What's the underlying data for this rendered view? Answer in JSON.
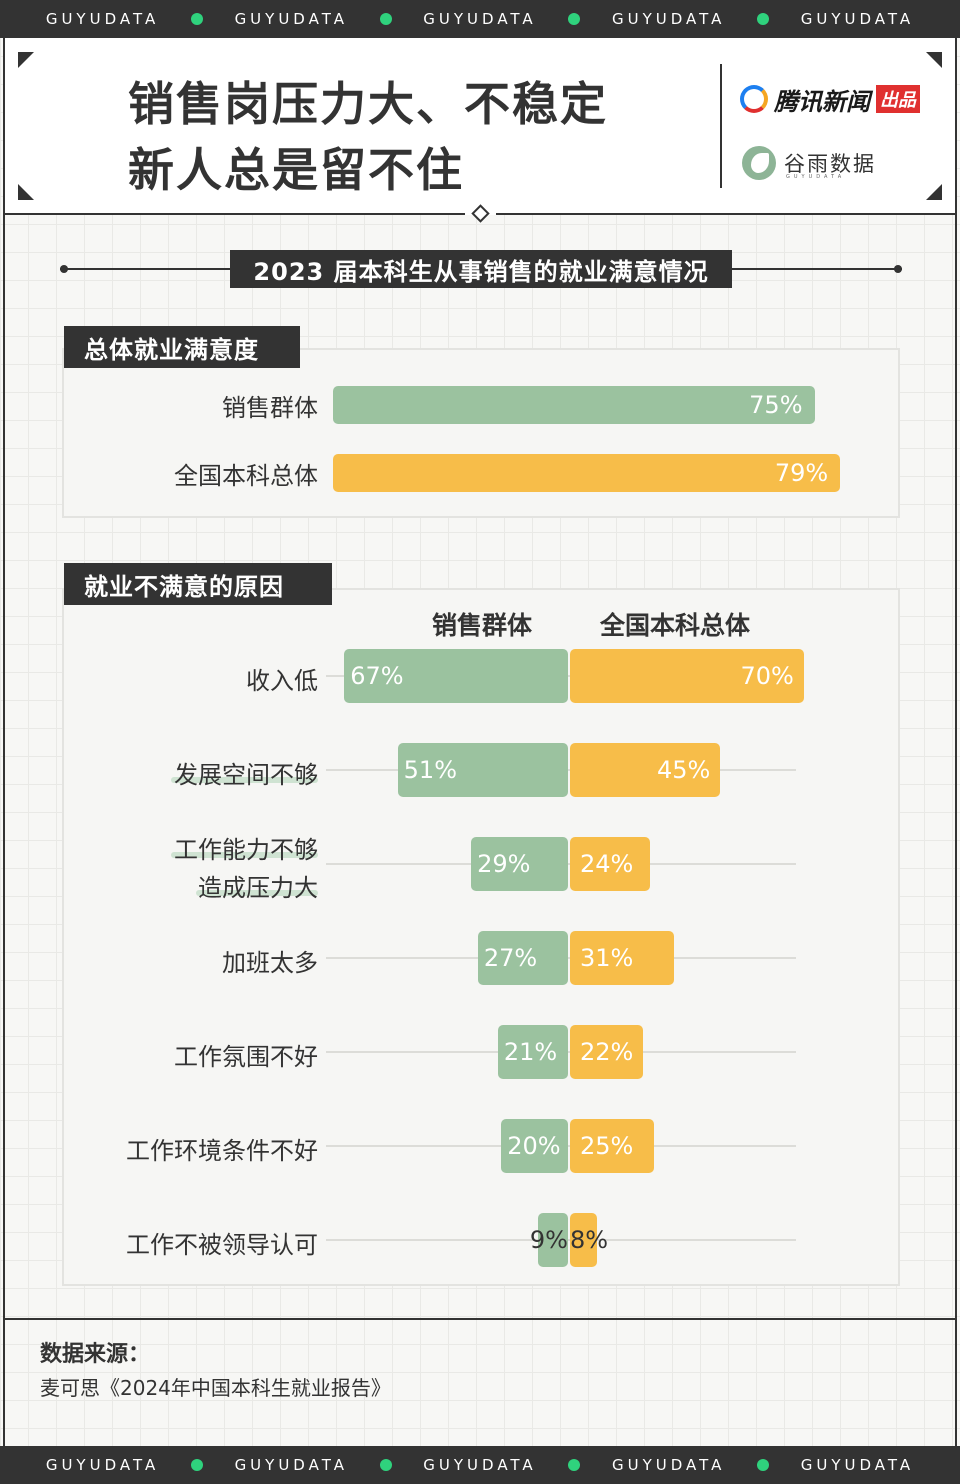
{
  "brand_strip": [
    "GUYUDATA",
    "GUYUDATA",
    "GUYUDATA",
    "GUYUDATA",
    "GUYUDATA"
  ],
  "header": {
    "title_line1": "销售岗压力大、不稳定",
    "title_line2": "新人总是留不住",
    "logo_tencent": {
      "name": "腾讯新闻",
      "tag": "出品"
    },
    "logo_guyu": {
      "name": "谷雨数据",
      "sub": "GUYUDATA"
    }
  },
  "main_title": "2023 届本科生从事销售的就业满意情况",
  "colors": {
    "sales": "#9bc29f",
    "national": "#f7bd49",
    "dark": "#333333",
    "accent_dot": "#2fd27d"
  },
  "chart_data": [
    {
      "type": "bar",
      "title": "总体就业满意度",
      "categories": [
        "销售群体",
        "全国本科总体"
      ],
      "values": [
        75,
        79
      ],
      "value_labels": [
        "75%",
        "79%"
      ],
      "unit": "%"
    },
    {
      "type": "bar",
      "title": "就业不满意的原因",
      "categories": [
        "收入低",
        "发展空间不够",
        "工作能力不够造成压力大",
        "加班太多",
        "工作氛围不好",
        "工作环境条件不好",
        "工作不被领导认可"
      ],
      "category_lines": [
        [
          "收入低"
        ],
        [
          "发展空间不够"
        ],
        [
          "工作能力不够",
          "造成压力大"
        ],
        [
          "加班太多"
        ],
        [
          "工作氛围不好"
        ],
        [
          "工作环境条件不好"
        ],
        [
          "工作不被领导认可"
        ]
      ],
      "series": [
        {
          "name": "销售群体",
          "values": [
            67,
            51,
            29,
            27,
            21,
            20,
            9
          ],
          "labels": [
            "67%",
            "51%",
            "29%",
            "27%",
            "21%",
            "20%",
            "9%"
          ]
        },
        {
          "name": "全国本科总体",
          "values": [
            70,
            45,
            24,
            31,
            22,
            25,
            8
          ],
          "labels": [
            "70%",
            "45%",
            "24%",
            "31%",
            "22%",
            "25%",
            "8%"
          ]
        }
      ],
      "unit": "%"
    }
  ],
  "source": {
    "title": "数据来源：",
    "text": "麦可思《2024年中国本科生就业报告》"
  }
}
